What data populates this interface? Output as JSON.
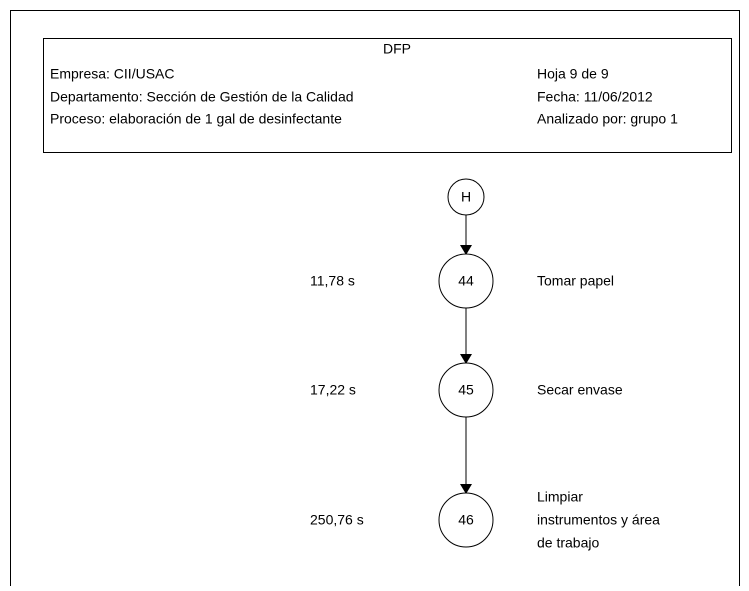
{
  "header": {
    "title": "DFP",
    "left": [
      "Empresa: CII/USAC",
      "Departamento: Sección de Gestión de la Calidad",
      "Proceso: elaboración de 1 gal de desinfectante"
    ],
    "right": [
      "Hoja 9 de 9",
      "Fecha: 11/06/2012",
      "Analizado por: grupo 1"
    ]
  },
  "connector": "H",
  "nodes": [
    {
      "label": "44",
      "time": "11,78 s",
      "description": [
        "Tomar papel"
      ]
    },
    {
      "label": "45",
      "time": "17,22 s",
      "description": [
        "Secar envase"
      ]
    },
    {
      "label": "46",
      "time": "250,76 s",
      "description": [
        "Limpiar",
        "instrumentos y área",
        "de trabajo"
      ]
    }
  ]
}
